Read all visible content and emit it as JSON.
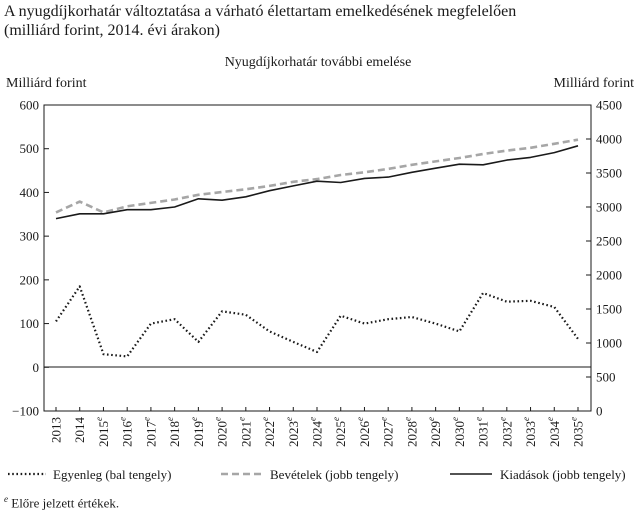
{
  "title": {
    "line1": "A nyugdíjkorhatár változtatása a várható élettartam emelkedésének megfelelően",
    "line2": "(milliárd forint, 2014. évi árakon)"
  },
  "footnote": {
    "marker": "e",
    "text": "Előre jelzett értékek."
  },
  "colors": {
    "axis": "#1a1a1a",
    "balance": "#1a1a1a",
    "revenue": "#a6a6a6",
    "expenditure": "#1a1a1a"
  },
  "chart_data": {
    "type": "line",
    "subtitle": "Nyugdíjkorhatár további emelése",
    "ylabel_left": "Milliárd forint",
    "ylabel_right": "Milliárd forint",
    "ylim_left": [
      -100,
      600
    ],
    "ylim_right": [
      0,
      4500
    ],
    "yticks_left": [
      -100,
      0,
      100,
      200,
      300,
      400,
      500,
      600
    ],
    "yticks_right": [
      0,
      500,
      1000,
      1500,
      2000,
      2500,
      3000,
      3500,
      4000,
      4500
    ],
    "forecast_marker": "e",
    "categories": [
      {
        "label": "2013",
        "forecast": false
      },
      {
        "label": "2014",
        "forecast": false
      },
      {
        "label": "2015",
        "forecast": true
      },
      {
        "label": "2016",
        "forecast": true
      },
      {
        "label": "2017",
        "forecast": true
      },
      {
        "label": "2018",
        "forecast": true
      },
      {
        "label": "2019",
        "forecast": true
      },
      {
        "label": "2020",
        "forecast": true
      },
      {
        "label": "2021",
        "forecast": true
      },
      {
        "label": "2022",
        "forecast": true
      },
      {
        "label": "2023",
        "forecast": true
      },
      {
        "label": "2024",
        "forecast": true
      },
      {
        "label": "2025",
        "forecast": true
      },
      {
        "label": "2026",
        "forecast": true
      },
      {
        "label": "2027",
        "forecast": true
      },
      {
        "label": "2028",
        "forecast": true
      },
      {
        "label": "2029",
        "forecast": true
      },
      {
        "label": "2030",
        "forecast": true
      },
      {
        "label": "2031",
        "forecast": true
      },
      {
        "label": "2032",
        "forecast": true
      },
      {
        "label": "2033",
        "forecast": true
      },
      {
        "label": "2034",
        "forecast": true
      },
      {
        "label": "2035",
        "forecast": true
      }
    ],
    "series": [
      {
        "name": "Egyenleg (bal tengely)",
        "axis": "left",
        "style": "dotted",
        "values": [
          105,
          185,
          30,
          25,
          100,
          110,
          58,
          128,
          120,
          82,
          58,
          35,
          118,
          100,
          110,
          115,
          100,
          82,
          170,
          150,
          152,
          138,
          65
        ]
      },
      {
        "name": "Bevételek (jobb tengely)",
        "axis": "right",
        "style": "dashed",
        "values": [
          2920,
          3080,
          2920,
          3010,
          3060,
          3110,
          3180,
          3220,
          3260,
          3310,
          3370,
          3410,
          3470,
          3510,
          3560,
          3620,
          3670,
          3720,
          3780,
          3830,
          3870,
          3930,
          3990
        ]
      },
      {
        "name": "Kiadások (jobb tengely)",
        "axis": "right",
        "style": "solid",
        "values": [
          2830,
          2900,
          2900,
          2960,
          2960,
          3000,
          3120,
          3100,
          3150,
          3240,
          3310,
          3380,
          3360,
          3420,
          3440,
          3510,
          3570,
          3630,
          3620,
          3690,
          3730,
          3800,
          3900
        ]
      }
    ]
  }
}
